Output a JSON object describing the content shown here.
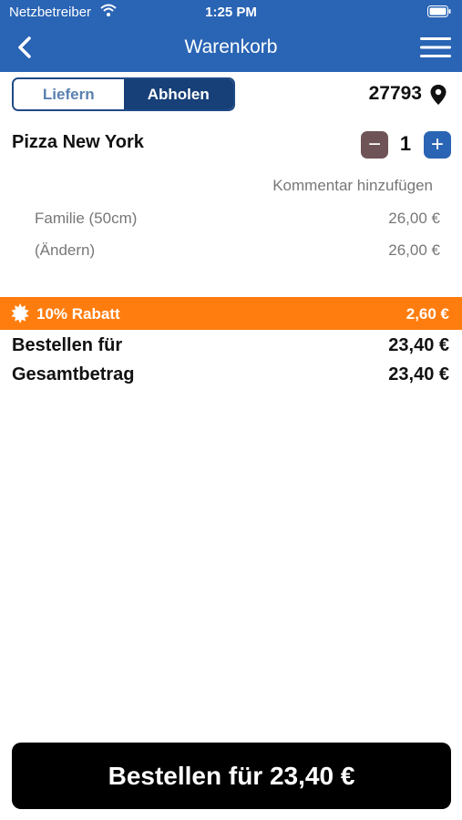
{
  "status_bar": {
    "carrier": "Netzbetreiber",
    "time": "1:25 PM"
  },
  "nav": {
    "title": "Warenkorb",
    "icons": [
      "back-icon",
      "menu-icon"
    ]
  },
  "mode_toggle": {
    "options": [
      "Liefern",
      "Abholen"
    ],
    "selected": "Abholen"
  },
  "location": {
    "postal_code": "27793",
    "icon": "map-pin-icon"
  },
  "cart_item": {
    "name": "Pizza New York",
    "quantity": "1",
    "minus_label": "−",
    "plus_label": "+",
    "comment_label": "Kommentar hinzufügen",
    "options": [
      {
        "label": "Familie (50cm)",
        "price": "26,00 €"
      },
      {
        "label": "(Ändern)",
        "price": "26,00 €"
      }
    ]
  },
  "discount": {
    "label": "10% Rabatt",
    "value": "2,60 €",
    "icon": "discount-burst-icon"
  },
  "summary": {
    "order_for_label": "Bestellen für",
    "order_for_value": "23,40 €",
    "total_label": "Gesamtbetrag",
    "total_value": "23,40 €"
  },
  "order_button": {
    "label": "Bestellen für 23,40 €"
  },
  "colors": {
    "header": "#2a64b4",
    "toggle_active": "#173f78",
    "discount": "#ff7d0e",
    "minus_button": "#6e5357",
    "plus_button": "#2a64b4",
    "order_button": "#000000"
  }
}
